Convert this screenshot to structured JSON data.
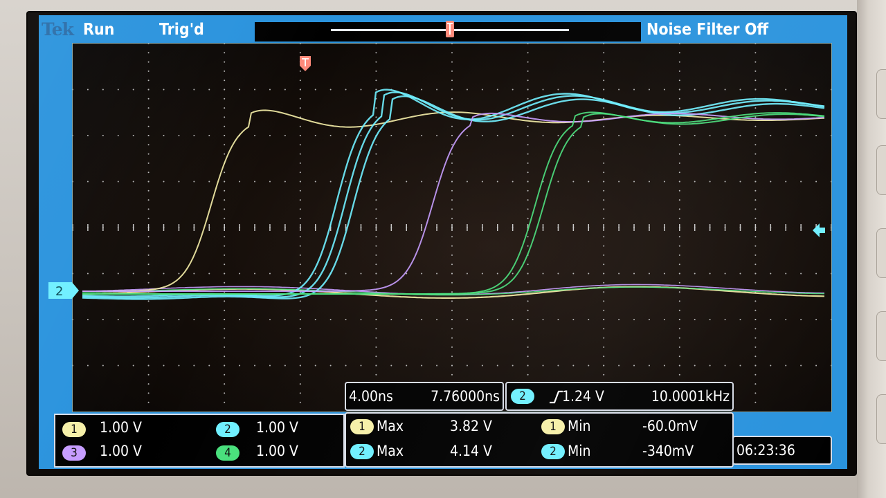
{
  "brand": "Tek",
  "status": {
    "run": "Run",
    "trigger": "Trig'd",
    "noise_filter": "Noise Filter Off"
  },
  "channel_marker": "2",
  "timebase": {
    "scale": "4.00ns",
    "position": "7.76000ns"
  },
  "trigger": {
    "channel": "2",
    "slope_level": "1.24 V",
    "frequency": "10.0001kHz"
  },
  "measurements": [
    {
      "channel": "1",
      "label": "Max",
      "value": "3.82 V"
    },
    {
      "channel": "2",
      "label": "Max",
      "value": "4.14 V"
    },
    {
      "channel": "1",
      "label": "Min",
      "value": "-60.0mV"
    },
    {
      "channel": "2",
      "label": "Min",
      "value": "-340mV"
    }
  ],
  "channels": [
    {
      "number": "1",
      "scale": "1.00 V",
      "color": "#f6f0a8"
    },
    {
      "number": "2",
      "scale": "1.00 V",
      "color": "#6ff0ff"
    },
    {
      "number": "3",
      "scale": "1.00 V",
      "color": "#c69cff"
    },
    {
      "number": "4",
      "scale": "1.00 V",
      "color": "#49e07c"
    }
  ],
  "clock": "06:23:36",
  "trace_colors": {
    "ch1": "#f6f0a8",
    "ch2": "#6ff0ff",
    "ch3": "#c69cff",
    "ch4": "#49e07c"
  }
}
